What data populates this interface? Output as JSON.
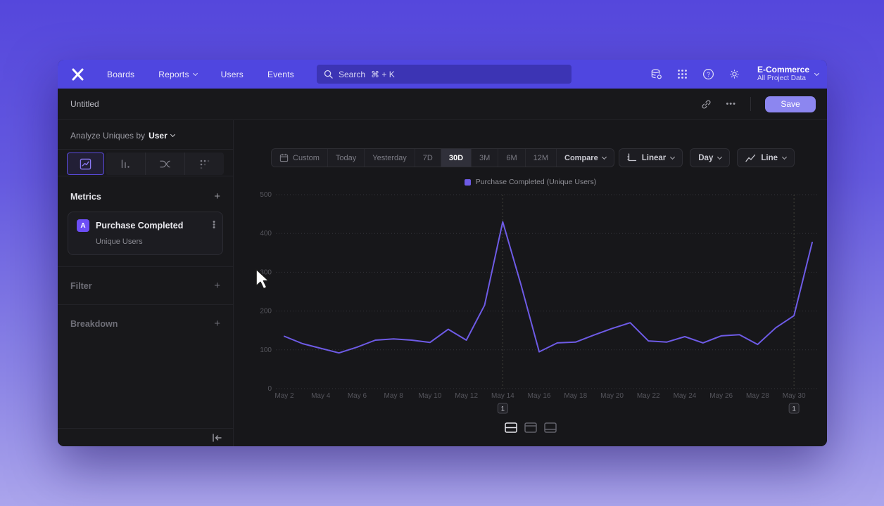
{
  "nav": {
    "brand": "mixpanel-logo",
    "items": [
      {
        "label": "Boards",
        "has_chevron": false
      },
      {
        "label": "Reports",
        "has_chevron": true
      },
      {
        "label": "Users",
        "has_chevron": false
      },
      {
        "label": "Events",
        "has_chevron": false
      }
    ],
    "search": {
      "placeholder": "Search",
      "shortcut": "⌘ + K"
    },
    "icons": [
      "data-connections",
      "apps-grid",
      "help",
      "settings"
    ],
    "project": {
      "name": "E-Commerce",
      "scope": "All Project Data"
    }
  },
  "header": {
    "title": "Untitled",
    "ellipsis": "•••",
    "save_label": "Save"
  },
  "sidebar": {
    "analyze": {
      "prefix": "Analyze Uniques by",
      "entity": "User"
    },
    "chart_tabs": [
      "line-chart",
      "bar-chart",
      "flows",
      "retention-dots"
    ],
    "metrics": {
      "title": "Metrics",
      "add_label": "+",
      "card": {
        "badge": "A",
        "title": "Purchase Completed",
        "subtitle": "Unique Users"
      }
    },
    "filter": {
      "title": "Filter",
      "add_label": "+"
    },
    "breakdown": {
      "title": "Breakdown",
      "add_label": "+"
    }
  },
  "toolbar": {
    "ranges": [
      "Custom",
      "Today",
      "Yesterday",
      "7D",
      "30D",
      "3M",
      "6M",
      "12M"
    ],
    "selected_range": "30D",
    "compare_label": "Compare",
    "scale_label": "Linear",
    "interval_label": "Day",
    "chart_type_label": "Line"
  },
  "chart_data": {
    "type": "line",
    "title": "",
    "legend": "Purchase Completed (Unique Users)",
    "legend_position": "top-center",
    "grid": true,
    "x": [
      "May 2",
      "May 3",
      "May 4",
      "May 5",
      "May 6",
      "May 7",
      "May 8",
      "May 9",
      "May 10",
      "May 11",
      "May 12",
      "May 13",
      "May 14",
      "May 15",
      "May 16",
      "May 17",
      "May 18",
      "May 19",
      "May 20",
      "May 21",
      "May 22",
      "May 23",
      "May 24",
      "May 25",
      "May 26",
      "May 27",
      "May 28",
      "May 29",
      "May 30",
      "May 31"
    ],
    "x_tick_labels": [
      "May 2",
      "May 4",
      "May 6",
      "May 8",
      "May 10",
      "May 12",
      "May 14",
      "May 16",
      "May 18",
      "May 20",
      "May 22",
      "May 24",
      "May 26",
      "May 28",
      "May 30"
    ],
    "series": [
      {
        "name": "Purchase Completed (Unique Users)",
        "color": "#6e5be6",
        "values": [
          135,
          116,
          104,
          92,
          107,
          125,
          128,
          125,
          119,
          153,
          125,
          215,
          430,
          268,
          95,
          118,
          120,
          138,
          155,
          170,
          123,
          120,
          134,
          118,
          136,
          139,
          114,
          157,
          188,
          377
        ]
      }
    ],
    "ylim": [
      0,
      500
    ],
    "y_ticks": [
      0,
      100,
      200,
      300,
      400,
      500
    ],
    "annotations": [
      {
        "x": "May 14",
        "label": "1"
      },
      {
        "x": "May 30",
        "label": "1"
      }
    ]
  },
  "colors": {
    "accent": "#6e5be6",
    "nav_bg": "#4f46e0",
    "save_btn": "#8c86f0",
    "grid_line": "#34343a",
    "annotation_line": "#41413a",
    "tick_label": "#55555c"
  }
}
